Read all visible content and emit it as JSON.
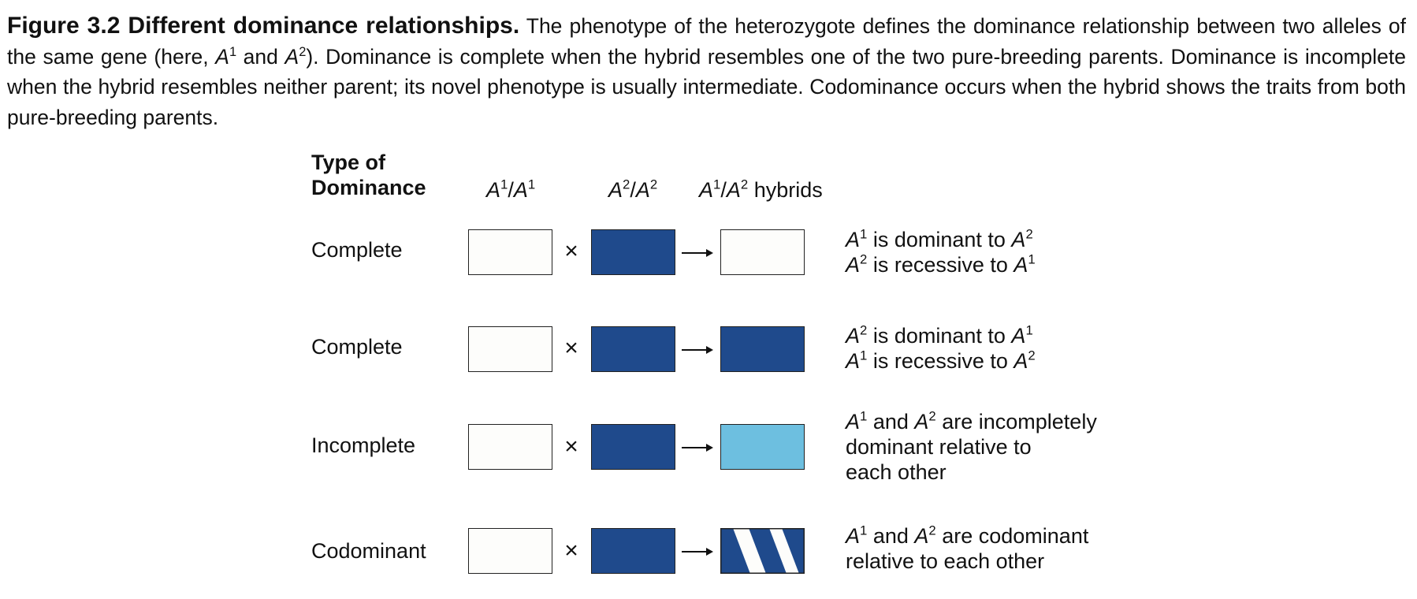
{
  "caption": {
    "title": "Figure 3.2 Different dominance relationships.",
    "t1": " The phenotype of the heterozygote defines the dominance relationship between two alleles of the same gene (here, ",
    "a": "A",
    "s1": "1",
    "and": " and ",
    "s2": "2",
    "t2": "). Dominance is complete when the hybrid resembles one of the two pure-breeding parents. Dominance is incomplete when the hybrid resembles neither parent; its novel phenotype is usually intermediate. Codominance occurs when the hybrid shows the traits from both pure-breeding parents."
  },
  "headers": {
    "type_line1": "Type of",
    "type_line2": "Dominance",
    "allele": "A",
    "one": "1",
    "two": "2",
    "slash": "/",
    "hybrids": "hybrids"
  },
  "cross_symbol": "×",
  "rows": [
    {
      "label": "Complete",
      "hybrid_fill": "white",
      "d_l1_a": "A",
      "d_l1_s1": "1",
      "d_l1_t": " is dominant to ",
      "d_l1_b": "A",
      "d_l1_s2": "2",
      "d_l2_a": "A",
      "d_l2_s1": "2",
      "d_l2_t": " is recessive to ",
      "d_l2_b": "A",
      "d_l2_s2": "1"
    },
    {
      "label": "Complete",
      "hybrid_fill": "dark-blue",
      "d_l1_a": "A",
      "d_l1_s1": "2",
      "d_l1_t": " is dominant to ",
      "d_l1_b": "A",
      "d_l1_s2": "1",
      "d_l2_a": "A",
      "d_l2_s1": "1",
      "d_l2_t": " is recessive to ",
      "d_l2_b": "A",
      "d_l2_s2": "2"
    },
    {
      "label": "Incomplete",
      "hybrid_fill": "light-blue",
      "d_l1_a": "A",
      "d_l1_s1": "1",
      "d_l1_t": " and ",
      "d_l1_b": "A",
      "d_l1_s2": "2",
      "d_l1_rest": " are incompletely",
      "d_l2": "dominant relative to",
      "d_l3": "each other"
    },
    {
      "label": "Codominant",
      "hybrid_fill": "striped",
      "d_l1_a": "A",
      "d_l1_s1": "1",
      "d_l1_t": " and ",
      "d_l1_b": "A",
      "d_l1_s2": "2",
      "d_l1_rest": " are codominant",
      "d_l2": "relative to each other"
    }
  ],
  "colors": {
    "dark_blue": "#1f4a8c",
    "light_blue": "#6dbfe0",
    "white_fill": "#fdfdfb",
    "border": "#222222"
  }
}
